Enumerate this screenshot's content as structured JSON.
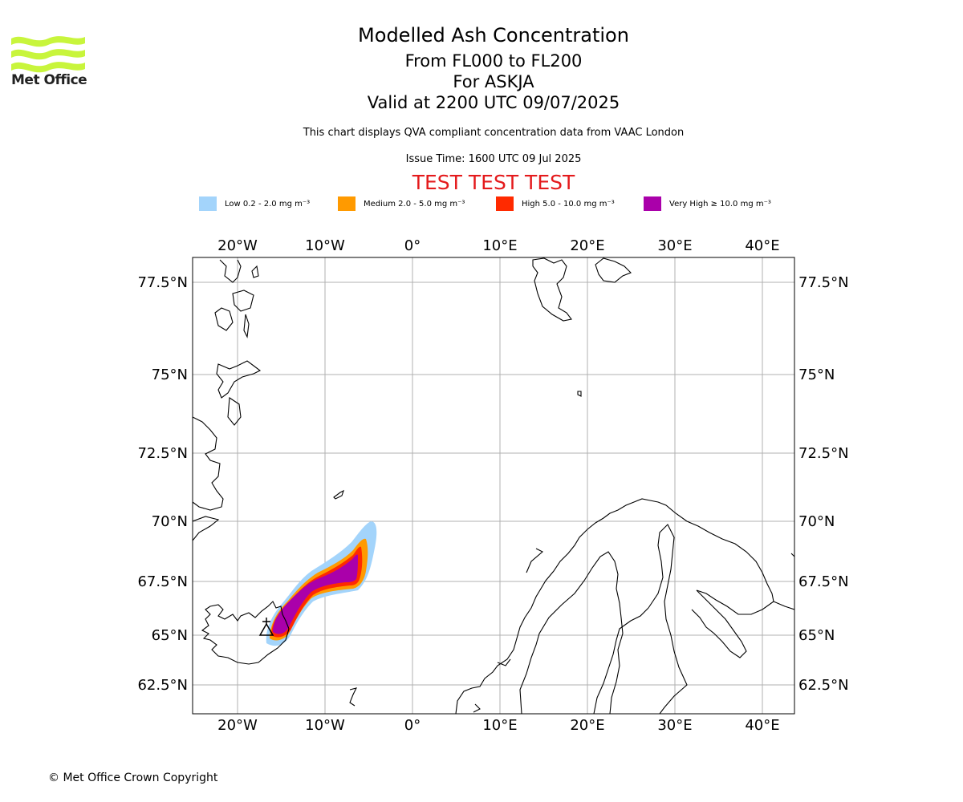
{
  "header": {
    "title": "Modelled Ash Concentration",
    "levels": "From FL000 to FL200",
    "volcano": "For ASKJA",
    "valid": "Valid at 2200 UTC 09/07/2025",
    "note": "This chart displays QVA compliant concentration data from VAAC London",
    "issue_time": "Issue Time: 1600 UTC 09 Jul 2025",
    "test_banner": "TEST TEST TEST"
  },
  "logo": {
    "text": "Met Office",
    "icon": "met-office-wave-logo",
    "color": "#c8f53c"
  },
  "legend": [
    {
      "label": "Low 0.2 - 2.0 mg m⁻³",
      "color": "#a3d4fb"
    },
    {
      "label": "Medium 2.0 - 5.0 mg m⁻³",
      "color": "#ff9a00"
    },
    {
      "label": "High 5.0 - 10.0 mg m⁻³",
      "color": "#ff2a00"
    },
    {
      "label": "Very High ≥ 10.0 mg m⁻³",
      "color": "#aa00aa"
    }
  ],
  "map": {
    "lon_labels": [
      "20°W",
      "10°W",
      "0°",
      "10°E",
      "20°E",
      "30°E",
      "40°E"
    ],
    "lat_labels": [
      "77.5°N",
      "75°N",
      "72.5°N",
      "70N",
      "67.5°N",
      "65°N",
      "62.5°N"
    ],
    "grid": true,
    "source_marker": "volcano-triangle-icon"
  },
  "footer": {
    "copyright": "© Met Office Crown Copyright"
  }
}
